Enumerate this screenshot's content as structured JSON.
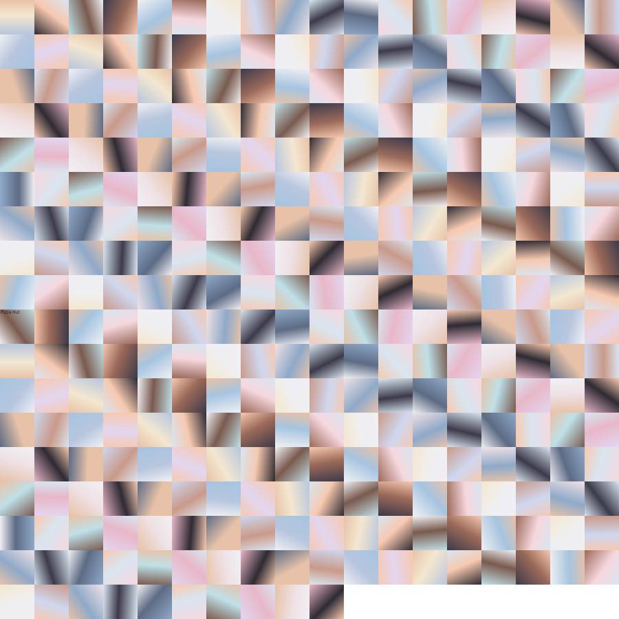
{
  "grid": {
    "columns": 18,
    "total_tiles": 316,
    "palette": [
      "#f6d7de",
      "#e7c2a8",
      "#cfd7ef",
      "#b8c6de",
      "#3c3a4a",
      "#f4e7d0",
      "#d9e5f0",
      "#7a5a4e",
      "#e8b7c8",
      "#a6c4e0",
      "#2e2a33",
      "#f0f0f4",
      "#c99a8a",
      "#8fa9c8",
      "#e3d6f0",
      "#5d6b84",
      "#f7c9b0",
      "#bfe0e8",
      "#9b6a5a",
      "#efe2e6"
    ],
    "captions": [
      {
        "index": 162,
        "text": "Pizza Hut"
      },
      {
        "index": 216,
        "text": ""
      },
      {
        "index": 306,
        "text": ""
      }
    ]
  }
}
